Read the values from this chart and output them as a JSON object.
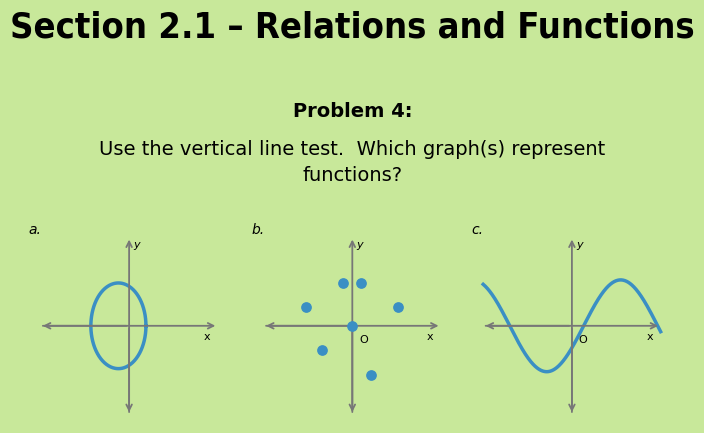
{
  "background_color": "#c8e89a",
  "title": "Section 2.1 – Relations and Functions",
  "title_fontsize": 26,
  "problem_label": "Problem 4:",
  "problem_fontsize": 14,
  "description": "Use the vertical line test.  Which graph(s) represent\nfunctions?",
  "description_fontsize": 14,
  "panel_bg": "#ffffff",
  "dot_color": "#3a8fc4",
  "curve_color": "#3a8fc4",
  "ellipse_color": "#3a8fc4",
  "axis_color": "#777777",
  "label_a": "a.",
  "label_b": "b.",
  "label_c": "c.",
  "dots_b_x": [
    -1.5,
    -0.3,
    0.3,
    1.5,
    -1.0,
    0.6
  ],
  "dots_b_y": [
    0.6,
    1.4,
    1.4,
    0.6,
    -0.8,
    -1.6
  ]
}
